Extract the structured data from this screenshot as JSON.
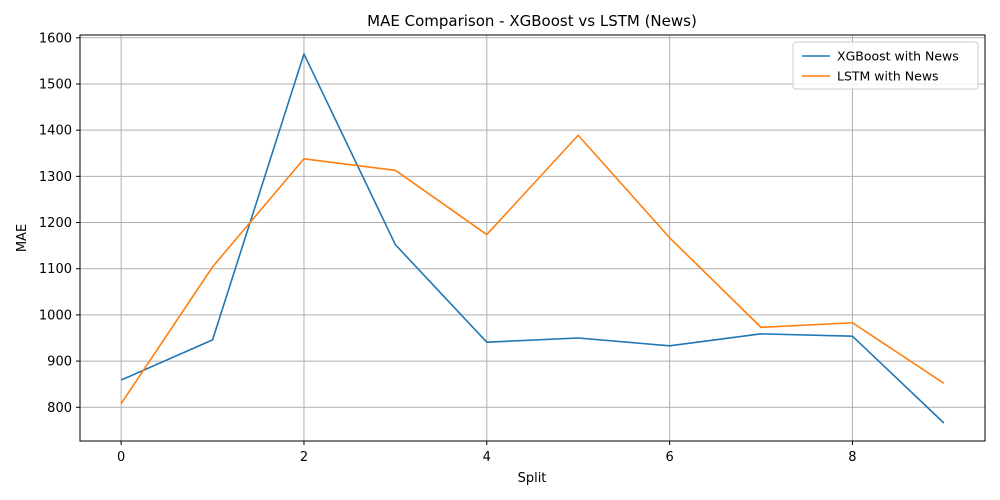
{
  "chart_data": {
    "type": "line",
    "title": "MAE Comparison - XGBoost vs LSTM (News)",
    "xlabel": "Split",
    "ylabel": "MAE",
    "x": [
      0,
      1,
      2,
      3,
      4,
      5,
      6,
      7,
      8,
      9
    ],
    "xlim": [
      -0.45,
      9.45
    ],
    "ylim": [
      727,
      1606
    ],
    "xticks": [
      0,
      2,
      4,
      6,
      8
    ],
    "yticks": [
      800,
      900,
      1000,
      1100,
      1200,
      1300,
      1400,
      1500,
      1600
    ],
    "grid": true,
    "legend_position": "top-right",
    "series": [
      {
        "name": "XGBoost with News",
        "color": "#1f77b4",
        "values": [
          859,
          946,
          1565,
          1152,
          941,
          950,
          933,
          959,
          954,
          766
        ]
      },
      {
        "name": "LSTM with News",
        "color": "#ff7f0e",
        "values": [
          808,
          1104,
          1338,
          1313,
          1174,
          1389,
          1167,
          973,
          983,
          852
        ]
      }
    ]
  }
}
